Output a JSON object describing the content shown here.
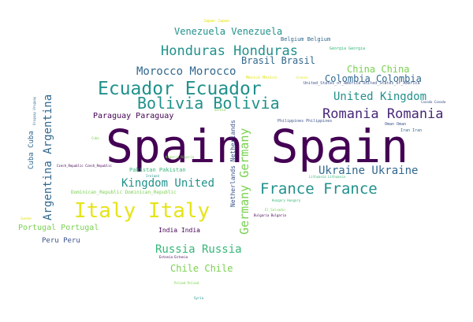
{
  "colors": {
    "purple": "#440154",
    "indigo": "#3b528b",
    "blue": "#31688e",
    "teal": "#21918c",
    "green": "#35b779",
    "lime": "#7ad151",
    "yellow": "#e5e419",
    "darkpurple": "#482878"
  },
  "words": {
    "spain": "Spain Spain",
    "ecuador": "Ecuador Ecuador",
    "italy": "Italy Italy",
    "bolivia": "Bolivia Bolivia",
    "france": "France France",
    "honduras": "Honduras Honduras",
    "romania": "Romania Romania",
    "ukraine": "Ukraine Ukraine",
    "morocco": "Morocco Morocco",
    "united_kingdom": "United Kingdom",
    "kingdom_united": "Kingdom United",
    "germany": "Germany Germany",
    "argentina": "Argentina Argentina",
    "russia": "Russia Russia",
    "venezuela": "Venezuela Venezuela",
    "colombia": "Colombia Colombia",
    "brasil": "Brasil Brasil",
    "china": "China China",
    "chile": "Chile Chile",
    "paraguay": "Paraguay Paraguay",
    "portugal": "Portugal Portugal",
    "belgium": "Belgium Belgium",
    "netherlands": "Netherlands Netherlands",
    "cuba": "Cuba Cuba",
    "peru": "Peru Peru",
    "india": "India India",
    "pakistan": "Pakistan Pakistan",
    "dominican_republic": "Dominican_Republic Dominican_Republic",
    "georgia": "Georgia Georgia",
    "mexico": "Mexico Mexico",
    "usa": "United_States_of_America United_States_of_America",
    "oman": "Oman Oman",
    "iran": "Iran Iran",
    "japan": "Japan Japan",
    "philippines": "Philippines Philippines",
    "uruguay": "Uruguay Uruguay",
    "czech": "Czech_Republic Czech_Republic",
    "lithuania": "Lithuania Lithuania",
    "nigeria": "Nigeria Nigeria",
    "hungary": "Hungary Hungary",
    "bulgaria": "Bulgaria Bulgaria",
    "el_salvador": "El_Salvador",
    "estonia": "Estonia Estonia",
    "poland": "Poland Poland",
    "canada": "Canada Canada",
    "ireland": "Ireland",
    "cuba_small": "Cuba",
    "syria": "Syria",
    "greece": "Greece",
    "serbia": "Serbia",
    "sweden": "Sweden"
  }
}
